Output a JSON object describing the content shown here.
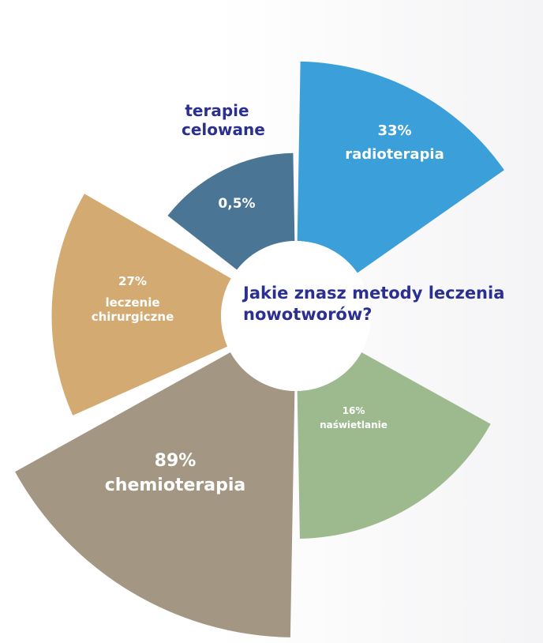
{
  "chart_data": {
    "type": "rose",
    "title": "Jakie znasz metody leczenia nowotworów?",
    "categories": [
      "radioterapia",
      "naświetlanie",
      "chemioterapia",
      "leczenie chirurgiczne",
      "terapie celowane"
    ],
    "values": [
      33,
      16,
      89,
      27,
      0.5
    ],
    "value_labels": [
      "33%",
      "16%",
      "89%",
      "27%",
      "0,5%"
    ],
    "colors": [
      "#3ba0d9",
      "#9dba8f",
      "#a39783",
      "#d3ab72",
      "#4b7594"
    ],
    "title_color": "#2b2f8f"
  }
}
